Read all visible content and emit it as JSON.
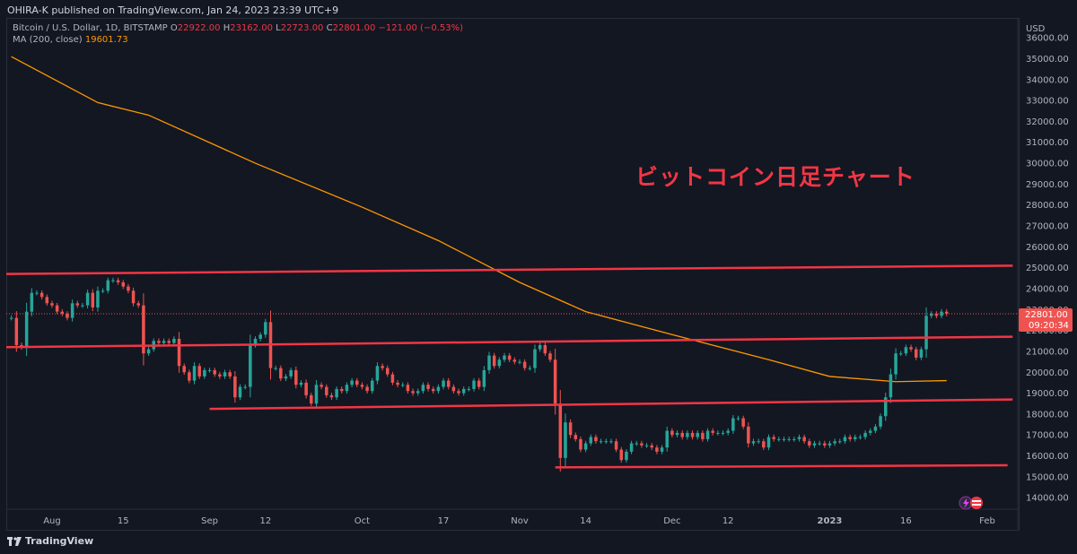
{
  "header": {
    "published": "OHIRA-K published on TradingView.com, Jan 24, 2023 23:39 UTC+9"
  },
  "legend": {
    "symbol": "Bitcoin / U.S. Dollar, 1D, BITSTAMP",
    "open_label": "O",
    "open": "22922.00",
    "high_label": "H",
    "high": "23162.00",
    "low_label": "L",
    "low": "22723.00",
    "close_label": "C",
    "close": "22801.00",
    "change": "−121.00 (−0.53%)",
    "ma_label": "MA (200, close)",
    "ma_value": "19601.73"
  },
  "annotation": "ビットコイン日足チャート",
  "price_tag": {
    "price": "22801.00",
    "countdown": "09:20:34"
  },
  "footer": {
    "brand": "TradingView"
  },
  "colors": {
    "background": "#131722",
    "up": "#26a69a",
    "down": "#ef5350",
    "ma": "#ff9800",
    "lines": "#f23645"
  },
  "chart_data": {
    "type": "candlestick",
    "currency_label": "USD",
    "y_ticks": [
      14000,
      15000,
      16000,
      17000,
      18000,
      19000,
      20000,
      21000,
      22000,
      23000,
      24000,
      25000,
      26000,
      27000,
      28000,
      29000,
      30000,
      31000,
      32000,
      33000,
      34000,
      35000,
      36000
    ],
    "ylim": [
      13450,
      36950
    ],
    "x_labels": [
      {
        "label": "Aug",
        "date": "2022-08-01"
      },
      {
        "label": "15",
        "date": "2022-08-15"
      },
      {
        "label": "Sep",
        "date": "2022-09-01"
      },
      {
        "label": "12",
        "date": "2022-09-12"
      },
      {
        "label": "Oct",
        "date": "2022-10-01"
      },
      {
        "label": "17",
        "date": "2022-10-17"
      },
      {
        "label": "Nov",
        "date": "2022-11-01"
      },
      {
        "label": "14",
        "date": "2022-11-14"
      },
      {
        "label": "Dec",
        "date": "2022-12-01"
      },
      {
        "label": "12",
        "date": "2022-12-12"
      },
      {
        "label": "2023",
        "date": "2023-01-01"
      },
      {
        "label": "16",
        "date": "2023-01-16"
      },
      {
        "label": "Feb",
        "date": "2023-02-01"
      }
    ],
    "xlim": [
      "2022-07-23",
      "2023-02-07"
    ],
    "closes": [
      [
        "2022-07-24",
        22600
      ],
      [
        "2022-07-25",
        21300
      ],
      [
        "2022-07-26",
        21200
      ],
      [
        "2022-07-27",
        22900
      ],
      [
        "2022-07-28",
        23800
      ],
      [
        "2022-07-29",
        23800
      ],
      [
        "2022-07-30",
        23600
      ],
      [
        "2022-07-31",
        23300
      ],
      [
        "2022-08-01",
        23200
      ],
      [
        "2022-08-02",
        22900
      ],
      [
        "2022-08-03",
        22800
      ],
      [
        "2022-08-04",
        22600
      ],
      [
        "2022-08-05",
        23300
      ],
      [
        "2022-08-06",
        23200
      ],
      [
        "2022-08-07",
        23200
      ],
      [
        "2022-08-08",
        23800
      ],
      [
        "2022-08-09",
        23100
      ],
      [
        "2022-08-10",
        23900
      ],
      [
        "2022-08-11",
        23900
      ],
      [
        "2022-08-12",
        24400
      ],
      [
        "2022-08-13",
        24400
      ],
      [
        "2022-08-14",
        24300
      ],
      [
        "2022-08-15",
        24100
      ],
      [
        "2022-08-16",
        23900
      ],
      [
        "2022-08-17",
        23300
      ],
      [
        "2022-08-18",
        23200
      ],
      [
        "2022-08-19",
        20900
      ],
      [
        "2022-08-20",
        21100
      ],
      [
        "2022-08-21",
        21500
      ],
      [
        "2022-08-22",
        21400
      ],
      [
        "2022-08-23",
        21500
      ],
      [
        "2022-08-24",
        21400
      ],
      [
        "2022-08-25",
        21600
      ],
      [
        "2022-08-26",
        20300
      ],
      [
        "2022-08-27",
        20000
      ],
      [
        "2022-08-28",
        19600
      ],
      [
        "2022-08-29",
        20300
      ],
      [
        "2022-08-30",
        19800
      ],
      [
        "2022-08-31",
        20100
      ],
      [
        "2022-09-01",
        20100
      ],
      [
        "2022-09-02",
        19900
      ],
      [
        "2022-09-03",
        19800
      ],
      [
        "2022-09-04",
        20000
      ],
      [
        "2022-09-05",
        19800
      ],
      [
        "2022-09-06",
        18800
      ],
      [
        "2022-09-07",
        19300
      ],
      [
        "2022-09-08",
        19300
      ],
      [
        "2022-09-09",
        21300
      ],
      [
        "2022-09-10",
        21600
      ],
      [
        "2022-09-11",
        21800
      ],
      [
        "2022-09-12",
        22400
      ],
      [
        "2022-09-13",
        20200
      ],
      [
        "2022-09-14",
        20200
      ],
      [
        "2022-09-15",
        19700
      ],
      [
        "2022-09-16",
        19800
      ],
      [
        "2022-09-17",
        20100
      ],
      [
        "2022-09-18",
        19400
      ],
      [
        "2022-09-19",
        19500
      ],
      [
        "2022-09-20",
        18900
      ],
      [
        "2022-09-21",
        18500
      ],
      [
        "2022-09-22",
        19400
      ],
      [
        "2022-09-23",
        19300
      ],
      [
        "2022-09-24",
        18900
      ],
      [
        "2022-09-25",
        18800
      ],
      [
        "2022-09-26",
        19200
      ],
      [
        "2022-09-27",
        19100
      ],
      [
        "2022-09-28",
        19400
      ],
      [
        "2022-09-29",
        19600
      ],
      [
        "2022-09-30",
        19400
      ],
      [
        "2022-10-01",
        19300
      ],
      [
        "2022-10-02",
        19100
      ],
      [
        "2022-10-03",
        19600
      ],
      [
        "2022-10-04",
        20300
      ],
      [
        "2022-10-05",
        20200
      ],
      [
        "2022-10-06",
        19900
      ],
      [
        "2022-10-07",
        19500
      ],
      [
        "2022-10-08",
        19400
      ],
      [
        "2022-10-09",
        19400
      ],
      [
        "2022-10-10",
        19100
      ],
      [
        "2022-10-11",
        19000
      ],
      [
        "2022-10-12",
        19100
      ],
      [
        "2022-10-13",
        19400
      ],
      [
        "2022-10-14",
        19200
      ],
      [
        "2022-10-15",
        19100
      ],
      [
        "2022-10-16",
        19300
      ],
      [
        "2022-10-17",
        19600
      ],
      [
        "2022-10-18",
        19300
      ],
      [
        "2022-10-19",
        19100
      ],
      [
        "2022-10-20",
        19000
      ],
      [
        "2022-10-21",
        19200
      ],
      [
        "2022-10-22",
        19200
      ],
      [
        "2022-10-23",
        19600
      ],
      [
        "2022-10-24",
        19300
      ],
      [
        "2022-10-25",
        20100
      ],
      [
        "2022-10-26",
        20800
      ],
      [
        "2022-10-27",
        20300
      ],
      [
        "2022-10-28",
        20600
      ],
      [
        "2022-10-29",
        20800
      ],
      [
        "2022-10-30",
        20600
      ],
      [
        "2022-10-31",
        20500
      ],
      [
        "2022-11-01",
        20500
      ],
      [
        "2022-11-02",
        20200
      ],
      [
        "2022-11-03",
        20200
      ],
      [
        "2022-11-04",
        21100
      ],
      [
        "2022-11-05",
        21300
      ],
      [
        "2022-11-06",
        20900
      ],
      [
        "2022-11-07",
        20600
      ],
      [
        "2022-11-08",
        18500
      ],
      [
        "2022-11-09",
        15900
      ],
      [
        "2022-11-10",
        17600
      ],
      [
        "2022-11-11",
        17000
      ],
      [
        "2022-11-12",
        16800
      ],
      [
        "2022-11-13",
        16300
      ],
      [
        "2022-11-14",
        16600
      ],
      [
        "2022-11-15",
        16900
      ],
      [
        "2022-11-16",
        16700
      ],
      [
        "2022-11-17",
        16700
      ],
      [
        "2022-11-18",
        16700
      ],
      [
        "2022-11-19",
        16700
      ],
      [
        "2022-11-20",
        16300
      ],
      [
        "2022-11-21",
        15800
      ],
      [
        "2022-11-22",
        16200
      ],
      [
        "2022-11-23",
        16600
      ],
      [
        "2022-11-24",
        16600
      ],
      [
        "2022-11-25",
        16500
      ],
      [
        "2022-11-26",
        16500
      ],
      [
        "2022-11-27",
        16400
      ],
      [
        "2022-11-28",
        16200
      ],
      [
        "2022-11-29",
        16400
      ],
      [
        "2022-11-30",
        17200
      ],
      [
        "2022-12-01",
        17000
      ],
      [
        "2022-12-02",
        17100
      ],
      [
        "2022-12-03",
        16900
      ],
      [
        "2022-12-04",
        17100
      ],
      [
        "2022-12-05",
        16900
      ],
      [
        "2022-12-06",
        17100
      ],
      [
        "2022-12-07",
        16800
      ],
      [
        "2022-12-08",
        17200
      ],
      [
        "2022-12-09",
        17100
      ],
      [
        "2022-12-10",
        17100
      ],
      [
        "2022-12-11",
        17100
      ],
      [
        "2022-12-12",
        17200
      ],
      [
        "2022-12-13",
        17800
      ],
      [
        "2022-12-14",
        17800
      ],
      [
        "2022-12-15",
        17400
      ],
      [
        "2022-12-16",
        16600
      ],
      [
        "2022-12-17",
        16700
      ],
      [
        "2022-12-18",
        16700
      ],
      [
        "2022-12-19",
        16400
      ],
      [
        "2022-12-20",
        16900
      ],
      [
        "2022-12-21",
        16800
      ],
      [
        "2022-12-22",
        16800
      ],
      [
        "2022-12-23",
        16800
      ],
      [
        "2022-12-24",
        16800
      ],
      [
        "2022-12-25",
        16800
      ],
      [
        "2022-12-26",
        16900
      ],
      [
        "2022-12-27",
        16700
      ],
      [
        "2022-12-28",
        16500
      ],
      [
        "2022-12-29",
        16600
      ],
      [
        "2022-12-30",
        16600
      ],
      [
        "2022-12-31",
        16500
      ],
      [
        "2023-01-01",
        16600
      ],
      [
        "2023-01-02",
        16700
      ],
      [
        "2023-01-03",
        16700
      ],
      [
        "2023-01-04",
        16900
      ],
      [
        "2023-01-05",
        16800
      ],
      [
        "2023-01-06",
        16900
      ],
      [
        "2023-01-07",
        16900
      ],
      [
        "2023-01-08",
        17100
      ],
      [
        "2023-01-09",
        17200
      ],
      [
        "2023-01-10",
        17400
      ],
      [
        "2023-01-11",
        17900
      ],
      [
        "2023-01-12",
        18800
      ],
      [
        "2023-01-13",
        19900
      ],
      [
        "2023-01-14",
        20900
      ],
      [
        "2023-01-15",
        20900
      ],
      [
        "2023-01-16",
        21200
      ],
      [
        "2023-01-17",
        21100
      ],
      [
        "2023-01-18",
        20700
      ],
      [
        "2023-01-19",
        21100
      ],
      [
        "2023-01-20",
        22700
      ],
      [
        "2023-01-21",
        22800
      ],
      [
        "2023-01-22",
        22700
      ],
      [
        "2023-01-23",
        22900
      ],
      [
        "2023-01-24",
        22801
      ]
    ],
    "ma_200": [
      [
        "2022-07-24",
        35100
      ],
      [
        "2022-08-10",
        32900
      ],
      [
        "2022-08-20",
        32300
      ],
      [
        "2022-09-10",
        30000
      ],
      [
        "2022-10-01",
        27900
      ],
      [
        "2022-10-16",
        26300
      ],
      [
        "2022-11-01",
        24300
      ],
      [
        "2022-11-14",
        22900
      ],
      [
        "2022-12-01",
        21800
      ],
      [
        "2022-12-20",
        20600
      ],
      [
        "2023-01-01",
        19800
      ],
      [
        "2023-01-14",
        19550
      ],
      [
        "2023-01-24",
        19601.73
      ]
    ],
    "horizontal_lines": [
      {
        "from": [
          "2022-07-23",
          24700
        ],
        "to": [
          "2023-02-06",
          25100
        ]
      },
      {
        "from": [
          "2022-07-23",
          21200
        ],
        "to": [
          "2023-02-06",
          21700
        ]
      },
      {
        "from": [
          "2022-09-01",
          18250
        ],
        "to": [
          "2023-02-06",
          18700
        ]
      },
      {
        "from": [
          "2022-11-08",
          15450
        ],
        "to": [
          "2023-02-05",
          15550
        ]
      }
    ]
  }
}
